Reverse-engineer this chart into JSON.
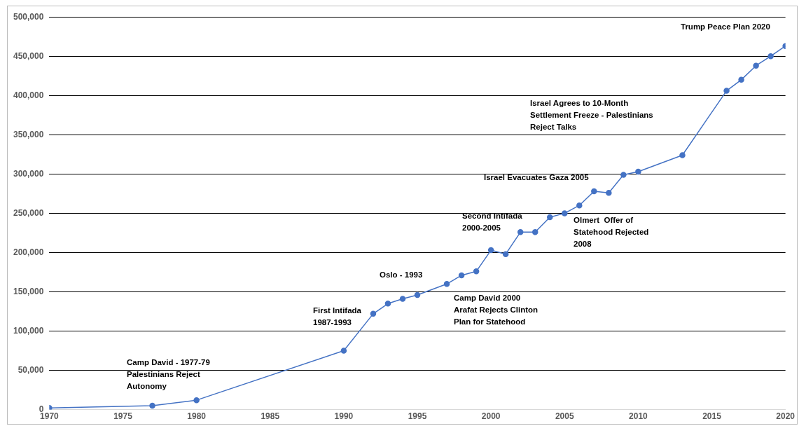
{
  "chart_data": {
    "type": "line",
    "x": [
      1970,
      1977,
      1980,
      1990,
      1992,
      1993,
      1994,
      1995,
      1997,
      1998,
      1999,
      2000,
      2001,
      2002,
      2003,
      2004,
      2005,
      2006,
      2007,
      2008,
      2009,
      2010,
      2013,
      2016,
      2017,
      2018,
      2019,
      2020
    ],
    "series": [
      {
        "color": "#4472c4",
        "values": [
          2000,
          5000,
          12000,
          75000,
          122000,
          135000,
          141000,
          146000,
          160000,
          171000,
          176000,
          203000,
          198000,
          226000,
          226000,
          245000,
          250000,
          260000,
          278000,
          276000,
          299000,
          303000,
          324000,
          406000,
          420000,
          438000,
          450000,
          463000
        ]
      }
    ],
    "xlim": [
      1970,
      2020
    ],
    "xticks": [
      1970,
      1975,
      1980,
      1985,
      1990,
      1995,
      2000,
      2005,
      2010,
      2015,
      2020
    ],
    "ylim": [
      0,
      500000
    ],
    "yticks": [
      0,
      {
        "value": 50000,
        "label": "50,000"
      },
      {
        "value": 100000,
        "label": "100,000"
      },
      {
        "value": 150000,
        "label": "150,000"
      },
      {
        "value": 200000,
        "label": "200,000"
      },
      {
        "value": 250000,
        "label": "250,000"
      },
      {
        "value": 300000,
        "label": "300,000"
      },
      {
        "value": 350000,
        "label": "350,000"
      },
      {
        "value": 400000,
        "label": "400,000"
      },
      {
        "value": 450000,
        "label": "450,000"
      },
      {
        "value": 500000,
        "label": "500,000"
      }
    ],
    "grid": "y",
    "legend": false,
    "marker": "circle",
    "line_style": "solid",
    "annotations": [
      "Camp David - 1977-79\nPalestinians Reject\nAutonomy",
      "First Intifada\n1987-1993",
      "Oslo - 1993",
      "Camp David 2000\nArafat Rejects Clinton\nPlan for Statehood",
      "Second Intifada\n2000-2005",
      "Israel Evacuates Gaza 2005",
      "Olmert  Offer of\nStatehood Rejected\n2008",
      "Israel Agrees to 10-Month\nSettlement Freeze - Palestinians\nReject Talks",
      "Trump Peace Plan 2020"
    ]
  }
}
